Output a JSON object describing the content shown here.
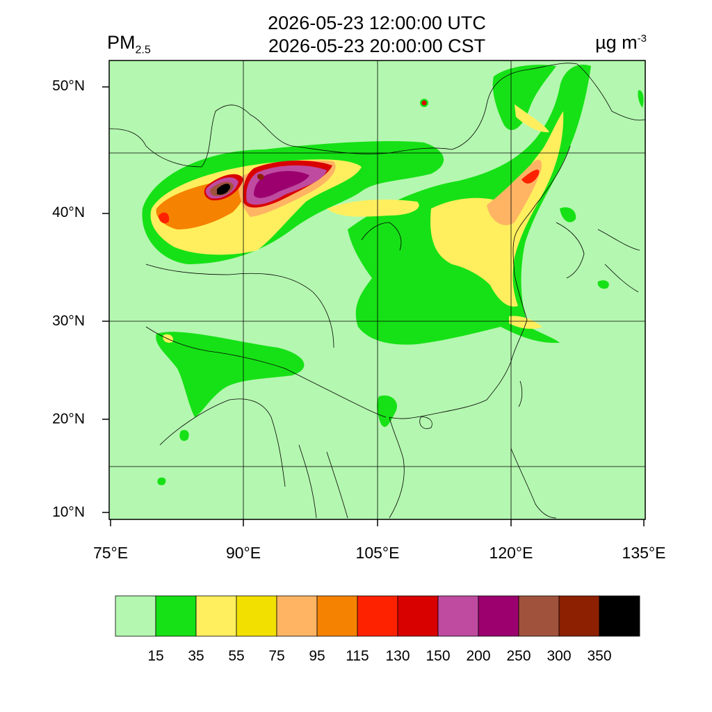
{
  "header": {
    "time_utc": "2026-05-23 12:00:00 UTC",
    "time_cst": "2026-05-23 20:00:00 CST",
    "variable": "PM",
    "variable_subscript": "2.5",
    "units": "µg m",
    "units_superscript": "-3"
  },
  "axes": {
    "lat_labels": [
      "50°N",
      "40°N",
      "30°N",
      "20°N",
      "10°N"
    ],
    "lon_labels": [
      "75°E",
      "90°E",
      "105°E",
      "120°E",
      "135°E"
    ]
  },
  "colorbar": {
    "colors": [
      "#b4f7b0",
      "#16e116",
      "#ffef5e",
      "#f2e000",
      "#ffb464",
      "#f58200",
      "#ff2200",
      "#d90000",
      "#be4ba0",
      "#9b006e",
      "#a0523c",
      "#8c2000",
      "#000000"
    ],
    "labels": [
      "15",
      "35",
      "55",
      "75",
      "95",
      "115",
      "130",
      "150",
      "200",
      "250",
      "300",
      "350"
    ]
  },
  "map": {
    "background_color": "#b4f7b0",
    "region": "East Asia"
  }
}
